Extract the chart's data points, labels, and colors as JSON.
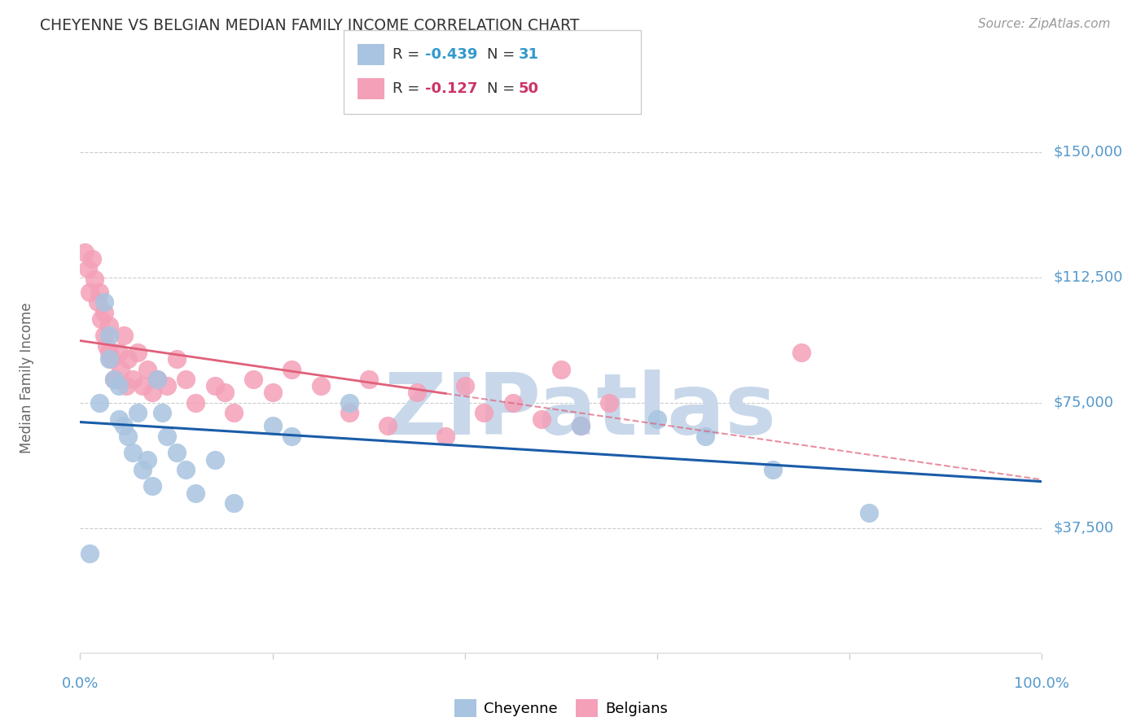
{
  "title": "CHEYENNE VS BELGIAN MEDIAN FAMILY INCOME CORRELATION CHART",
  "source": "Source: ZipAtlas.com",
  "ylabel": "Median Family Income",
  "y_ticks": [
    37500,
    75000,
    112500,
    150000
  ],
  "y_tick_labels": [
    "$37,500",
    "$75,000",
    "$112,500",
    "$150,000"
  ],
  "x_range": [
    0.0,
    1.0
  ],
  "y_range": [
    0,
    165000
  ],
  "cheyenne_R": "-0.439",
  "cheyenne_N": "31",
  "belgians_R": "-0.127",
  "belgians_N": "50",
  "cheyenne_color": "#a8c4e0",
  "belgians_color": "#f4a0b8",
  "cheyenne_line_color": "#1a5ca8",
  "belgians_line_color": "#e0607a",
  "grid_color": "#cccccc",
  "background_color": "#ffffff",
  "watermark": "ZIPatlas",
  "watermark_color": "#c8d8ea",
  "title_color": "#333333",
  "source_color": "#999999",
  "tick_label_color": "#5599cc",
  "axis_label_color": "#666666",
  "cheyenne_x": [
    0.01,
    0.02,
    0.025,
    0.03,
    0.03,
    0.035,
    0.04,
    0.04,
    0.045,
    0.05,
    0.055,
    0.06,
    0.065,
    0.07,
    0.075,
    0.08,
    0.085,
    0.09,
    0.1,
    0.11,
    0.12,
    0.14,
    0.16,
    0.2,
    0.22,
    0.28,
    0.52,
    0.6,
    0.65,
    0.72,
    0.82
  ],
  "cheyenne_y": [
    30000,
    75000,
    105000,
    95000,
    88000,
    82000,
    80000,
    70000,
    68000,
    65000,
    60000,
    72000,
    55000,
    58000,
    50000,
    82000,
    72000,
    65000,
    60000,
    55000,
    48000,
    58000,
    45000,
    68000,
    65000,
    75000,
    68000,
    70000,
    65000,
    55000,
    42000
  ],
  "belgians_x": [
    0.005,
    0.008,
    0.01,
    0.012,
    0.015,
    0.018,
    0.02,
    0.022,
    0.025,
    0.025,
    0.028,
    0.03,
    0.03,
    0.032,
    0.035,
    0.04,
    0.042,
    0.045,
    0.048,
    0.05,
    0.055,
    0.06,
    0.065,
    0.07,
    0.075,
    0.08,
    0.09,
    0.1,
    0.11,
    0.12,
    0.14,
    0.15,
    0.16,
    0.18,
    0.2,
    0.22,
    0.25,
    0.28,
    0.3,
    0.32,
    0.35,
    0.38,
    0.4,
    0.42,
    0.45,
    0.48,
    0.5,
    0.52,
    0.55,
    0.75
  ],
  "belgians_y": [
    120000,
    115000,
    108000,
    118000,
    112000,
    105000,
    108000,
    100000,
    95000,
    102000,
    92000,
    98000,
    90000,
    88000,
    82000,
    90000,
    85000,
    95000,
    80000,
    88000,
    82000,
    90000,
    80000,
    85000,
    78000,
    82000,
    80000,
    88000,
    82000,
    75000,
    80000,
    78000,
    72000,
    82000,
    78000,
    85000,
    80000,
    72000,
    82000,
    68000,
    78000,
    65000,
    80000,
    72000,
    75000,
    70000,
    85000,
    68000,
    75000,
    90000
  ]
}
